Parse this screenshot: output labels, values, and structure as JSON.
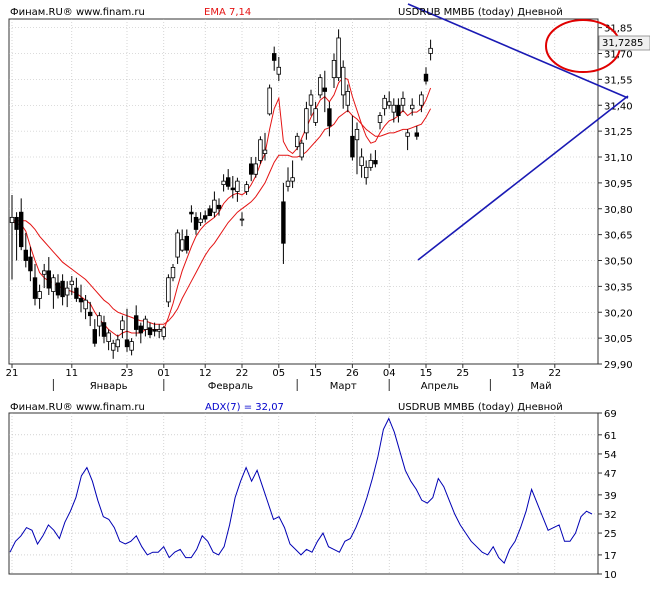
{
  "colors": {
    "background": "#ffffff",
    "frame": "#333333",
    "grid": "#b8b8b8",
    "ema": "#e41414",
    "blue_text": "#0000cc",
    "candle_up": "#ffffff",
    "candle_down": "#000000",
    "trendline": "#1a1ab4",
    "highlight_circle": "#e00000",
    "adx_line": "#0000b4"
  },
  "price_panel": {
    "source_label": "Финам.RU®  www.finam.ru",
    "indicator_label": "EMA 7,14",
    "instrument_label": "USDRUB ММВБ (today) Дневной",
    "last_price_label": "31,7285"
  },
  "adx_panel": {
    "source_label": "Финам.RU®  www.finam.ru",
    "indicator_label": "ADX(7) = 32,07",
    "instrument_label": "USDRUB ММВБ (today) Дневной"
  },
  "chart_data": [
    {
      "type": "candlestick",
      "name": "USDRUB ММВБ (today) Дневной",
      "ylim": [
        29.9,
        31.9
      ],
      "y_ticks": [
        "31,85",
        "31,70",
        "31,55",
        "31,40",
        "31,25",
        "31,10",
        "30,95",
        "30,80",
        "30,65",
        "30,50",
        "30,35",
        "30,20",
        "30,05",
        "29,90"
      ],
      "x_tick_labels": [
        "21",
        "11",
        "23",
        "01",
        "12",
        "22",
        "05",
        "15",
        "26",
        "04",
        "15",
        "25",
        "13",
        "22"
      ],
      "x_tick_index": [
        0,
        13,
        25,
        33,
        42,
        50,
        58,
        66,
        74,
        82,
        90,
        98,
        110,
        118
      ],
      "month_labels": [
        {
          "label": "Январь",
          "start": 9,
          "end": 33
        },
        {
          "label": "Февраль",
          "start": 33,
          "end": 62
        },
        {
          "label": "Март",
          "start": 62,
          "end": 82
        },
        {
          "label": "Апрель",
          "start": 82,
          "end": 104
        },
        {
          "label": "Май",
          "start": 104,
          "end": 126
        }
      ],
      "ohlc": [
        [
          30.72,
          30.88,
          30.39,
          30.75
        ],
        [
          30.75,
          30.78,
          30.5,
          30.68
        ],
        [
          30.78,
          30.86,
          30.56,
          30.58
        ],
        [
          30.56,
          30.66,
          30.46,
          30.5
        ],
        [
          30.52,
          30.58,
          30.38,
          30.44
        ],
        [
          30.4,
          30.48,
          30.24,
          30.28
        ],
        [
          30.28,
          30.36,
          30.22,
          30.32
        ],
        [
          30.42,
          30.48,
          30.34,
          30.44
        ],
        [
          30.44,
          30.52,
          30.3,
          30.34
        ],
        [
          30.32,
          30.42,
          30.22,
          30.4
        ],
        [
          30.37,
          30.42,
          30.28,
          30.3
        ],
        [
          30.38,
          30.42,
          30.24,
          30.29
        ],
        [
          30.3,
          30.38,
          30.23,
          30.34
        ],
        [
          30.36,
          30.41,
          30.3,
          30.38
        ],
        [
          30.34,
          30.4,
          30.26,
          30.28
        ],
        [
          30.28,
          30.36,
          30.2,
          30.26
        ],
        [
          30.22,
          30.3,
          30.16,
          30.27
        ],
        [
          30.2,
          30.26,
          30.12,
          30.18
        ],
        [
          30.1,
          30.16,
          30.0,
          30.02
        ],
        [
          30.12,
          30.2,
          30.06,
          30.18
        ],
        [
          30.14,
          30.18,
          30.02,
          30.06
        ],
        [
          30.03,
          30.1,
          29.98,
          30.08
        ],
        [
          29.98,
          30.04,
          29.93,
          30.02
        ],
        [
          30.0,
          30.07,
          29.97,
          30.04
        ],
        [
          30.1,
          30.18,
          30.05,
          30.15
        ],
        [
          30.04,
          30.22,
          29.97,
          30.0
        ],
        [
          29.98,
          30.05,
          29.95,
          30.03
        ],
        [
          30.18,
          30.24,
          30.06,
          30.1
        ],
        [
          30.12,
          30.14,
          30.02,
          30.08
        ],
        [
          30.1,
          30.18,
          30.06,
          30.16
        ],
        [
          30.11,
          30.14,
          30.05,
          30.07
        ],
        [
          30.1,
          30.14,
          30.06,
          30.09
        ],
        [
          30.09,
          30.13,
          30.05,
          30.1
        ],
        [
          30.06,
          30.12,
          30.04,
          30.11
        ],
        [
          30.26,
          30.42,
          30.23,
          30.4
        ],
        [
          30.4,
          30.48,
          30.38,
          30.46
        ],
        [
          30.52,
          30.68,
          30.48,
          30.66
        ],
        [
          30.56,
          30.68,
          30.55,
          30.62
        ],
        [
          30.64,
          30.68,
          30.54,
          30.56
        ],
        [
          30.78,
          30.82,
          30.72,
          30.77
        ],
        [
          30.75,
          30.78,
          30.65,
          30.68
        ],
        [
          30.72,
          30.78,
          30.7,
          30.74
        ],
        [
          30.76,
          30.79,
          30.72,
          30.74
        ],
        [
          30.8,
          30.82,
          30.76,
          30.76
        ],
        [
          30.78,
          30.9,
          30.75,
          30.85
        ],
        [
          30.82,
          30.86,
          30.76,
          30.8
        ],
        [
          30.94,
          31.0,
          30.9,
          30.96
        ],
        [
          30.98,
          31.03,
          30.91,
          30.93
        ],
        [
          30.92,
          30.99,
          30.86,
          30.91
        ],
        [
          30.9,
          30.98,
          30.84,
          30.96
        ],
        [
          30.74,
          30.78,
          30.7,
          30.74
        ],
        [
          30.9,
          30.96,
          30.88,
          30.94
        ],
        [
          31.06,
          31.1,
          30.96,
          31.0
        ],
        [
          31.0,
          31.1,
          30.98,
          31.06
        ],
        [
          31.08,
          31.22,
          31.06,
          31.2
        ],
        [
          31.12,
          31.24,
          31.08,
          31.14
        ],
        [
          31.35,
          31.52,
          31.34,
          31.5
        ],
        [
          31.7,
          31.74,
          31.6,
          31.66
        ],
        [
          31.58,
          31.68,
          31.54,
          31.62
        ],
        [
          30.84,
          30.95,
          30.48,
          30.6
        ],
        [
          30.93,
          31.04,
          30.9,
          30.96
        ],
        [
          30.96,
          31.08,
          30.92,
          30.98
        ],
        [
          31.16,
          31.24,
          31.14,
          31.22
        ],
        [
          31.1,
          31.2,
          31.08,
          31.18
        ],
        [
          31.24,
          31.42,
          31.2,
          31.38
        ],
        [
          31.4,
          31.49,
          31.34,
          31.46
        ],
        [
          31.3,
          31.42,
          31.28,
          31.38
        ],
        [
          31.46,
          31.58,
          31.44,
          31.56
        ],
        [
          31.5,
          31.6,
          31.36,
          31.48
        ],
        [
          31.38,
          31.42,
          31.22,
          31.28
        ],
        [
          31.56,
          31.7,
          31.5,
          31.66
        ],
        [
          31.56,
          31.84,
          31.54,
          31.79
        ],
        [
          31.46,
          31.66,
          31.38,
          31.62
        ],
        [
          31.4,
          31.52,
          31.36,
          31.48
        ],
        [
          31.22,
          31.34,
          31.08,
          31.1
        ],
        [
          31.2,
          31.3,
          31.0,
          31.26
        ],
        [
          31.05,
          31.15,
          30.98,
          31.1
        ],
        [
          30.98,
          31.08,
          30.94,
          31.04
        ],
        [
          31.04,
          31.12,
          31.02,
          31.08
        ],
        [
          31.08,
          31.14,
          31.04,
          31.06
        ],
        [
          31.3,
          31.36,
          31.26,
          31.34
        ],
        [
          31.38,
          31.46,
          31.34,
          31.44
        ],
        [
          31.4,
          31.48,
          31.38,
          31.42
        ],
        [
          31.36,
          31.44,
          31.3,
          31.4
        ],
        [
          31.4,
          31.44,
          31.3,
          31.34
        ],
        [
          31.4,
          31.48,
          31.36,
          31.44
        ],
        [
          31.22,
          31.26,
          31.14,
          31.24
        ],
        [
          31.38,
          31.44,
          31.34,
          31.4
        ],
        [
          31.24,
          31.28,
          31.2,
          31.22
        ],
        [
          31.4,
          31.48,
          31.36,
          31.46
        ],
        [
          31.58,
          31.62,
          31.52,
          31.54
        ],
        [
          31.7,
          31.78,
          31.66,
          31.73
        ]
      ],
      "ema_series": [
        {
          "name": "EMA 7",
          "values": [
            30.73,
            30.71,
            30.71,
            30.67,
            30.58,
            30.5,
            30.43,
            30.4,
            30.38,
            30.37,
            30.35,
            30.34,
            30.33,
            30.32,
            30.31,
            30.29,
            30.27,
            30.25,
            30.2,
            30.16,
            30.13,
            30.1,
            30.08,
            30.06,
            30.08,
            30.09,
            30.08,
            30.08,
            30.08,
            30.1,
            30.1,
            30.1,
            30.1,
            30.1,
            30.17,
            30.25,
            30.35,
            30.44,
            30.51,
            30.58,
            30.64,
            30.68,
            30.71,
            30.73,
            30.75,
            30.78,
            30.83,
            30.86,
            30.88,
            30.89,
            30.88,
            30.9,
            30.94,
            30.99,
            31.06,
            31.12,
            31.26,
            31.38,
            31.44,
            31.19,
            31.14,
            31.12,
            31.15,
            31.21,
            31.27,
            31.33,
            31.38,
            31.43,
            31.45,
            31.42,
            31.46,
            31.53,
            31.56,
            31.55,
            31.45,
            31.37,
            31.29,
            31.22,
            31.18,
            31.19,
            31.24,
            31.28,
            31.31,
            31.32,
            31.34,
            31.37,
            31.34,
            31.36,
            31.36,
            31.38,
            31.43,
            31.5
          ]
        },
        {
          "name": "EMA 14",
          "values": [
            30.73,
            30.73,
            30.73,
            30.73,
            30.71,
            30.68,
            30.64,
            30.61,
            30.58,
            30.55,
            30.52,
            30.49,
            30.47,
            30.45,
            30.43,
            30.41,
            30.39,
            30.36,
            30.33,
            30.3,
            30.27,
            30.25,
            30.22,
            30.2,
            30.19,
            30.18,
            30.17,
            30.16,
            30.15,
            30.15,
            30.14,
            30.13,
            30.13,
            30.13,
            30.15,
            30.18,
            30.22,
            30.28,
            30.33,
            30.38,
            30.43,
            30.48,
            30.53,
            30.57,
            30.6,
            30.64,
            30.68,
            30.72,
            30.75,
            30.78,
            30.8,
            30.82,
            30.84,
            30.87,
            30.91,
            30.95,
            31.01,
            31.07,
            31.11,
            31.11,
            31.11,
            31.1,
            31.1,
            31.11,
            31.13,
            31.16,
            31.19,
            31.22,
            31.26,
            31.27,
            31.29,
            31.33,
            31.35,
            31.37,
            31.34,
            31.32,
            31.29,
            31.26,
            31.24,
            31.22,
            31.22,
            31.23,
            31.24,
            31.24,
            31.25,
            31.26,
            31.26,
            31.27,
            31.28,
            31.29,
            31.33,
            31.38
          ]
        }
      ],
      "last_value": 31.7285
    },
    {
      "type": "line",
      "name": "ADX(7)",
      "ylim": [
        10,
        69
      ],
      "y_ticks": [
        "69",
        "61",
        "54",
        "47",
        "39",
        "32",
        "25",
        "17",
        "10"
      ],
      "values": [
        18,
        22,
        24,
        27,
        26,
        21,
        24,
        28,
        26,
        23,
        29,
        33,
        38,
        46,
        49,
        44,
        37,
        31,
        30,
        27,
        22,
        21,
        22,
        24,
        20,
        17,
        18,
        18,
        20,
        16,
        18,
        19,
        16,
        16,
        19,
        24,
        22,
        18,
        17,
        20,
        28,
        38,
        44,
        49,
        44,
        48,
        42,
        36,
        30,
        31,
        27,
        21,
        19,
        17,
        19,
        18,
        22,
        25,
        20,
        19,
        18,
        22,
        23,
        27,
        32,
        38,
        45,
        53,
        63,
        67,
        62,
        55,
        48,
        44,
        41,
        37,
        36,
        38,
        45,
        42,
        37,
        32,
        28,
        25,
        22,
        20,
        18,
        17,
        20,
        16,
        14,
        19,
        22,
        27,
        33,
        41,
        36,
        31,
        26,
        27,
        28,
        22,
        22,
        25,
        31,
        33,
        32
      ]
    }
  ]
}
